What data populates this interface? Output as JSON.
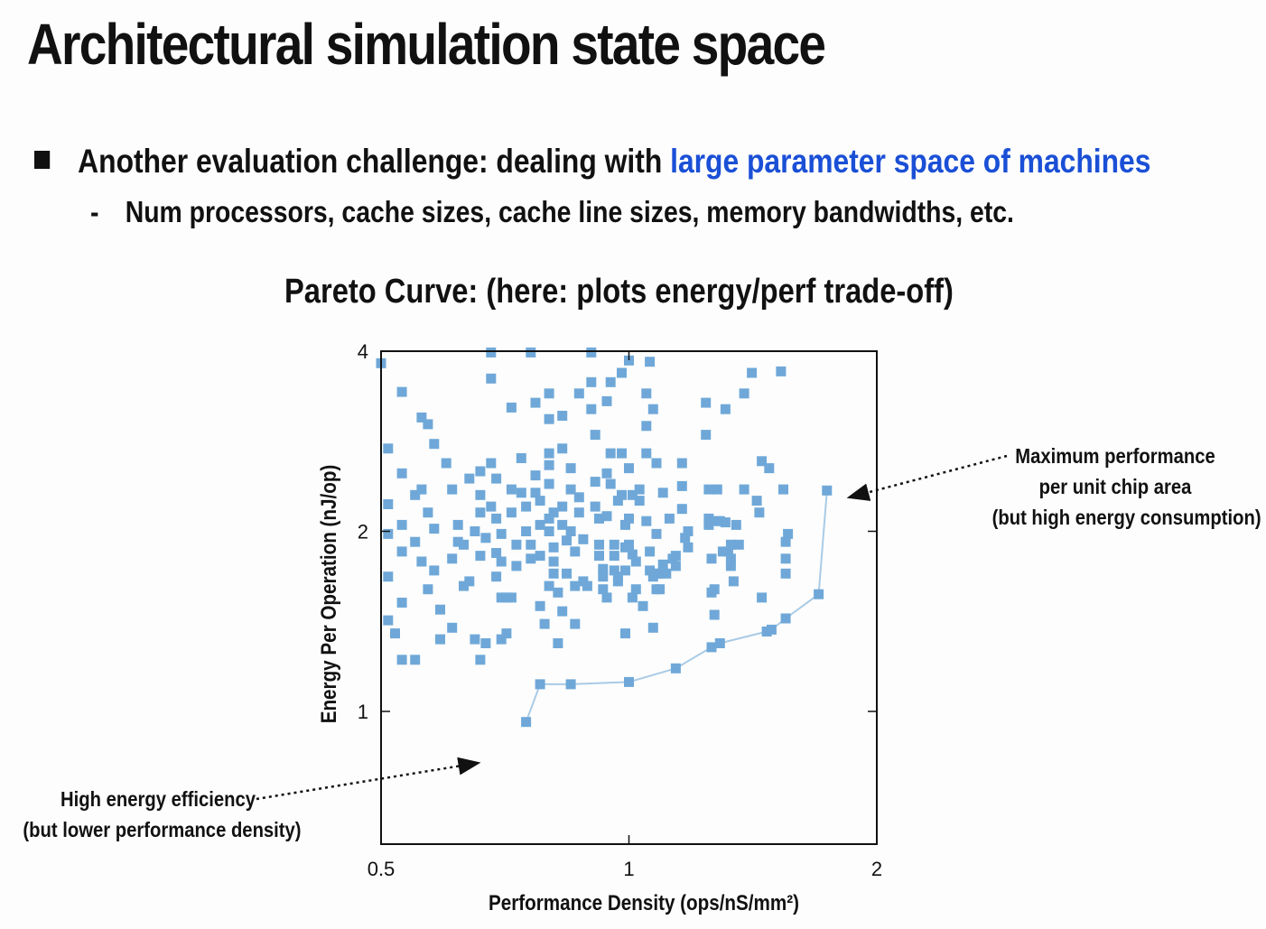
{
  "slide": {
    "title": "Architectural simulation state space",
    "bullet_prefix": "Another evaluation challenge: dealing with ",
    "bullet_highlight": "large parameter space of machines",
    "subbullet_marker": "-",
    "subbullet": "Num processors, cache sizes, cache line sizes, memory bandwidths, etc.",
    "chart_heading": "Pareto Curve: (here: plots energy/perf trade-off)",
    "annotation_right": [
      "Maximum performance",
      "per unit chip area",
      "(but high energy consumption)"
    ],
    "annotation_left": [
      "High energy efficiency",
      "(but lower performance density)"
    ]
  },
  "colors": {
    "marker": "#6fa8d8",
    "pareto_line": "#a9cbe6",
    "highlight": "#1a4fd6",
    "axis": "#111111"
  },
  "chart_data": {
    "type": "scatter",
    "xscale": "log",
    "yscale": "log",
    "xlim": [
      0.5,
      2
    ],
    "ylim": [
      0.6,
      4
    ],
    "xticks": [
      0.5,
      1,
      2
    ],
    "xtick_labels": [
      "0.5",
      "1",
      "2"
    ],
    "yticks": [
      1,
      2,
      4
    ],
    "ytick_labels": [
      "1",
      "2",
      "4"
    ],
    "xlabel": "Performance Density (ops/nS/mm²)",
    "ylabel": "Energy Per Operation (nJ/op)",
    "grid": false,
    "series": [
      {
        "kind": "points",
        "points": [
          [
            0.5,
            3.82
          ],
          [
            0.53,
            3.42
          ],
          [
            0.51,
            2.75
          ],
          [
            0.53,
            2.5
          ],
          [
            0.51,
            2.22
          ],
          [
            0.53,
            2.05
          ],
          [
            0.51,
            1.98
          ],
          [
            0.55,
            2.3
          ],
          [
            0.53,
            1.85
          ],
          [
            0.51,
            1.68
          ],
          [
            0.53,
            1.52
          ],
          [
            0.51,
            1.42
          ],
          [
            0.52,
            1.35
          ],
          [
            0.53,
            1.22
          ],
          [
            0.55,
            1.22
          ],
          [
            0.56,
            3.1
          ],
          [
            0.57,
            3.02
          ],
          [
            0.58,
            2.8
          ],
          [
            0.56,
            2.35
          ],
          [
            0.57,
            2.15
          ],
          [
            0.58,
            2.02
          ],
          [
            0.55,
            1.92
          ],
          [
            0.56,
            1.78
          ],
          [
            0.58,
            1.72
          ],
          [
            0.57,
            1.6
          ],
          [
            0.59,
            1.48
          ],
          [
            0.59,
            1.32
          ],
          [
            0.6,
            2.6
          ],
          [
            0.61,
            2.35
          ],
          [
            0.62,
            1.92
          ],
          [
            0.63,
            1.9
          ],
          [
            0.61,
            1.8
          ],
          [
            0.63,
            1.62
          ],
          [
            0.61,
            1.38
          ],
          [
            0.62,
            2.05
          ],
          [
            0.64,
            2.45
          ],
          [
            0.66,
            2.52
          ],
          [
            0.66,
            2.3
          ],
          [
            0.66,
            2.15
          ],
          [
            0.65,
            2.0
          ],
          [
            0.67,
            1.95
          ],
          [
            0.66,
            1.82
          ],
          [
            0.64,
            1.65
          ],
          [
            0.65,
            1.32
          ],
          [
            0.67,
            1.3
          ],
          [
            0.66,
            1.22
          ],
          [
            0.68,
            3.98
          ],
          [
            0.68,
            3.6
          ],
          [
            0.68,
            2.6
          ],
          [
            0.69,
            2.45
          ],
          [
            0.68,
            2.2
          ],
          [
            0.69,
            2.1
          ],
          [
            0.7,
            1.98
          ],
          [
            0.69,
            1.84
          ],
          [
            0.7,
            1.78
          ],
          [
            0.69,
            1.68
          ],
          [
            0.7,
            1.55
          ],
          [
            0.71,
            1.55
          ],
          [
            0.7,
            1.32
          ],
          [
            0.71,
            1.35
          ],
          [
            0.72,
            3.22
          ],
          [
            0.72,
            2.35
          ],
          [
            0.72,
            2.15
          ],
          [
            0.73,
            1.9
          ],
          [
            0.73,
            1.75
          ],
          [
            0.72,
            1.55
          ],
          [
            0.74,
            2.65
          ],
          [
            0.74,
            2.32
          ],
          [
            0.75,
            2.2
          ],
          [
            0.75,
            2.0
          ],
          [
            0.76,
            1.9
          ],
          [
            0.76,
            1.8
          ],
          [
            0.76,
            3.98
          ],
          [
            0.77,
            3.28
          ],
          [
            0.77,
            2.48
          ],
          [
            0.77,
            2.32
          ],
          [
            0.78,
            2.25
          ],
          [
            0.78,
            2.05
          ],
          [
            0.78,
            1.82
          ],
          [
            0.78,
            1.5
          ],
          [
            0.79,
            1.4
          ],
          [
            0.8,
            3.4
          ],
          [
            0.8,
            3.08
          ],
          [
            0.8,
            2.7
          ],
          [
            0.8,
            2.58
          ],
          [
            0.8,
            2.4
          ],
          [
            0.8,
            2.1
          ],
          [
            0.81,
            2.15
          ],
          [
            0.8,
            2.0
          ],
          [
            0.81,
            1.88
          ],
          [
            0.81,
            1.78
          ],
          [
            0.81,
            1.7
          ],
          [
            0.8,
            1.62
          ],
          [
            0.82,
            1.58
          ],
          [
            0.82,
            1.3
          ],
          [
            0.83,
            3.12
          ],
          [
            0.83,
            2.75
          ],
          [
            0.83,
            2.2
          ],
          [
            0.83,
            2.05
          ],
          [
            0.84,
            1.93
          ],
          [
            0.84,
            1.7
          ],
          [
            0.83,
            1.47
          ],
          [
            0.85,
            2.55
          ],
          [
            0.85,
            2.35
          ],
          [
            0.85,
            2.0
          ],
          [
            0.86,
            1.85
          ],
          [
            0.86,
            1.62
          ],
          [
            0.86,
            1.4
          ],
          [
            0.87,
            3.4
          ],
          [
            0.87,
            2.28
          ],
          [
            0.87,
            2.15
          ],
          [
            0.88,
            1.94
          ],
          [
            0.88,
            1.65
          ],
          [
            0.89,
            1.62
          ],
          [
            0.9,
            3.98
          ],
          [
            0.9,
            3.55
          ],
          [
            0.9,
            3.2
          ],
          [
            0.91,
            2.9
          ],
          [
            0.91,
            2.42
          ],
          [
            0.91,
            2.2
          ],
          [
            0.92,
            2.1
          ],
          [
            0.92,
            1.9
          ],
          [
            0.92,
            1.82
          ],
          [
            0.93,
            1.73
          ],
          [
            0.93,
            1.68
          ],
          [
            0.93,
            1.6
          ],
          [
            0.94,
            3.3
          ],
          [
            0.94,
            2.5
          ],
          [
            0.94,
            2.12
          ],
          [
            0.94,
            1.55
          ],
          [
            0.95,
            3.55
          ],
          [
            0.95,
            2.7
          ],
          [
            0.95,
            2.4
          ],
          [
            0.96,
            1.9
          ],
          [
            0.96,
            1.82
          ],
          [
            0.96,
            1.72
          ],
          [
            0.97,
            2.25
          ],
          [
            0.97,
            1.68
          ],
          [
            0.97,
            1.65
          ],
          [
            0.98,
            3.68
          ],
          [
            0.98,
            2.7
          ],
          [
            0.98,
            2.3
          ],
          [
            0.99,
            2.05
          ],
          [
            0.99,
            1.88
          ],
          [
            0.99,
            1.72
          ],
          [
            0.99,
            1.35
          ],
          [
            1.0,
            3.86
          ],
          [
            1.0,
            2.55
          ],
          [
            1.0,
            2.1
          ],
          [
            1.01,
            2.3
          ],
          [
            1.0,
            1.9
          ],
          [
            1.01,
            1.83
          ],
          [
            1.01,
            1.55
          ],
          [
            1.02,
            1.78
          ],
          [
            1.02,
            1.6
          ],
          [
            1.03,
            2.35
          ],
          [
            1.03,
            2.25
          ],
          [
            1.04,
            1.5
          ],
          [
            1.05,
            3.4
          ],
          [
            1.05,
            3.0
          ],
          [
            1.05,
            2.7
          ],
          [
            1.05,
            2.08
          ],
          [
            1.06,
            1.85
          ],
          [
            1.06,
            1.72
          ],
          [
            1.07,
            1.68
          ],
          [
            1.08,
            1.6
          ],
          [
            1.07,
            1.38
          ],
          [
            1.06,
            3.84
          ],
          [
            1.07,
            3.2
          ],
          [
            1.08,
            2.6
          ],
          [
            1.08,
            1.98
          ],
          [
            1.08,
            1.7
          ],
          [
            1.09,
            1.7
          ],
          [
            1.09,
            1.6
          ],
          [
            1.1,
            2.32
          ],
          [
            1.1,
            1.76
          ],
          [
            1.11,
            1.7
          ],
          [
            1.12,
            2.1
          ],
          [
            1.13,
            1.8
          ],
          [
            1.14,
            1.82
          ],
          [
            1.14,
            1.75
          ],
          [
            1.16,
            2.6
          ],
          [
            1.16,
            2.38
          ],
          [
            1.16,
            2.18
          ],
          [
            1.17,
            1.95
          ],
          [
            1.18,
            2.0
          ],
          [
            1.18,
            1.88
          ],
          [
            1.24,
            3.28
          ],
          [
            1.24,
            2.9
          ],
          [
            1.25,
            2.35
          ],
          [
            1.25,
            2.1
          ],
          [
            1.25,
            2.05
          ],
          [
            1.26,
            1.8
          ],
          [
            1.26,
            1.58
          ],
          [
            1.27,
            1.45
          ],
          [
            1.27,
            1.6
          ],
          [
            1.28,
            2.35
          ],
          [
            1.28,
            2.08
          ],
          [
            1.29,
            2.08
          ],
          [
            1.3,
            1.85
          ],
          [
            1.31,
            3.2
          ],
          [
            1.31,
            2.07
          ],
          [
            1.32,
            1.85
          ],
          [
            1.33,
            1.75
          ],
          [
            1.33,
            1.9
          ],
          [
            1.34,
            1.65
          ],
          [
            1.35,
            2.05
          ],
          [
            1.36,
            1.9
          ],
          [
            1.38,
            2.35
          ],
          [
            1.38,
            3.4
          ],
          [
            1.41,
            3.68
          ],
          [
            1.43,
            2.25
          ],
          [
            1.44,
            2.15
          ],
          [
            1.45,
            2.62
          ],
          [
            1.45,
            1.55
          ],
          [
            1.48,
            2.55
          ],
          [
            1.53,
            3.7
          ],
          [
            1.54,
            2.35
          ],
          [
            1.55,
            1.92
          ],
          [
            1.55,
            1.8
          ],
          [
            1.55,
            1.7
          ],
          [
            1.56,
            1.98
          ],
          [
            1.33,
            1.8
          ]
        ]
      },
      {
        "name": "Pareto curve",
        "kind": "pareto",
        "points": [
          [
            0.75,
            0.96
          ],
          [
            0.78,
            1.11
          ],
          [
            0.85,
            1.11
          ],
          [
            1.0,
            1.12
          ],
          [
            1.14,
            1.18
          ],
          [
            1.26,
            1.28
          ],
          [
            1.29,
            1.3
          ],
          [
            1.47,
            1.36
          ],
          [
            1.49,
            1.37
          ],
          [
            1.55,
            1.43
          ],
          [
            1.7,
            1.57
          ],
          [
            1.74,
            2.34
          ]
        ]
      }
    ]
  }
}
